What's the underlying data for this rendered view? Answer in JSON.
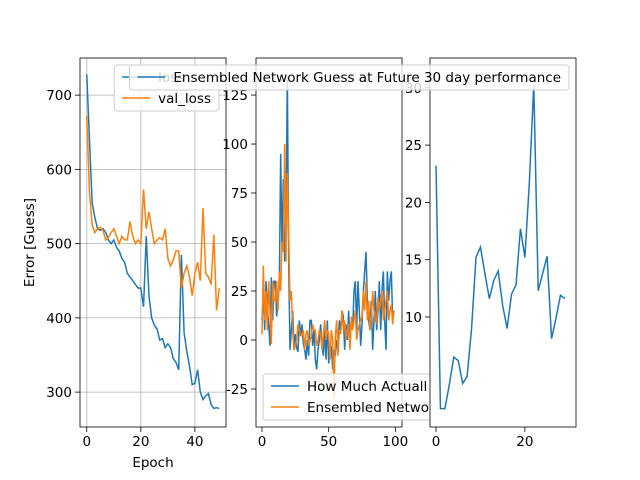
{
  "chart_data": [
    {
      "type": "line",
      "xlabel": "Epoch",
      "ylabel": "Error [Guess]",
      "grid": true,
      "legend": "upper right",
      "xlim": [
        -2.5,
        51.5
      ],
      "ylim": [
        253,
        750
      ],
      "xticks": [
        0,
        20,
        40
      ],
      "yticks": [
        300,
        400,
        500,
        600,
        700
      ],
      "x": [
        0,
        1,
        2,
        3,
        4,
        5,
        6,
        7,
        8,
        9,
        10,
        11,
        12,
        13,
        14,
        15,
        16,
        17,
        18,
        19,
        20,
        21,
        22,
        23,
        24,
        25,
        26,
        27,
        28,
        29,
        30,
        31,
        32,
        33,
        34,
        35,
        36,
        37,
        38,
        39,
        40,
        41,
        42,
        43,
        44,
        45,
        46,
        47,
        48,
        49
      ],
      "series": [
        {
          "name": "loss",
          "color": "#1f77b4",
          "values": [
            728,
            640,
            555,
            535,
            520,
            518,
            520,
            515,
            505,
            500,
            505,
            495,
            490,
            480,
            475,
            460,
            455,
            450,
            445,
            440,
            440,
            415,
            510,
            430,
            400,
            390,
            385,
            370,
            372,
            360,
            365,
            360,
            345,
            340,
            330,
            485,
            380,
            355,
            335,
            310,
            312,
            330,
            300,
            290,
            295,
            298,
            283,
            278,
            279,
            278
          ]
        },
        {
          "name": "val_loss",
          "color": "#ff7f0e",
          "values": [
            672,
            570,
            525,
            515,
            520,
            522,
            518,
            505,
            508,
            515,
            520,
            510,
            500,
            510,
            505,
            505,
            530,
            510,
            500,
            505,
            500,
            573,
            520,
            543,
            520,
            500,
            505,
            508,
            505,
            520,
            480,
            470,
            478,
            490,
            490,
            440,
            460,
            470,
            455,
            430,
            460,
            475,
            450,
            548,
            460,
            455,
            445,
            512,
            410,
            440
          ]
        }
      ]
    },
    {
      "type": "line",
      "grid": false,
      "legend": "lower left",
      "xlim": [
        -4.5,
        105
      ],
      "ylim": [
        -44.4,
        143.9
      ],
      "xticks": [
        0,
        50,
        100
      ],
      "yticks": [
        -25,
        0,
        25,
        50,
        75,
        100,
        125
      ],
      "x": [
        0,
        1,
        2,
        3,
        4,
        5,
        6,
        7,
        8,
        9,
        10,
        11,
        12,
        13,
        14,
        15,
        16,
        17,
        18,
        19,
        20,
        21,
        22,
        23,
        24,
        25,
        26,
        27,
        28,
        29,
        30,
        31,
        32,
        33,
        34,
        35,
        36,
        37,
        38,
        39,
        40,
        41,
        42,
        43,
        44,
        45,
        46,
        47,
        48,
        49,
        50,
        51,
        52,
        53,
        54,
        55,
        56,
        57,
        58,
        59,
        60,
        61,
        62,
        63,
        64,
        65,
        66,
        67,
        68,
        69,
        70,
        71,
        72,
        73,
        74,
        75,
        76,
        77,
        78,
        79,
        80,
        81,
        82,
        83,
        84,
        85,
        86,
        87,
        88,
        89,
        90,
        91,
        92,
        93,
        94,
        95,
        96,
        97,
        98,
        99
      ],
      "series": [
        {
          "name": "How Much Actuall",
          "color": "#1f77b4",
          "values": [
            10,
            25,
            5,
            30,
            18,
            8,
            -3,
            32,
            10,
            30,
            30,
            12,
            20,
            28,
            95,
            45,
            82,
            40,
            60,
            135,
            40,
            -5,
            5,
            15,
            -5,
            3,
            -4,
            -6,
            10,
            2,
            8,
            -2,
            -5,
            -10,
            0,
            -8,
            10,
            10,
            -3,
            5,
            -10,
            -15,
            -5,
            0,
            8,
            -3,
            -8,
            5,
            -10,
            10,
            -12,
            -5,
            -3,
            -15,
            -5,
            -8,
            0,
            -5,
            10,
            5,
            15,
            12,
            -5,
            8,
            0,
            15,
            -3,
            10,
            5,
            25,
            30,
            5,
            30,
            15,
            -3,
            8,
            25,
            35,
            45,
            20,
            10,
            5,
            20,
            -5,
            10,
            25,
            5,
            15,
            30,
            5,
            25,
            35,
            10,
            -5,
            35,
            20,
            30,
            35,
            10,
            15
          ]
        },
        {
          "name": "Ensembled Netwo",
          "color": "#ff7f0e",
          "values": [
            3,
            38,
            10,
            25,
            5,
            30,
            15,
            -2,
            30,
            20,
            20,
            30,
            15,
            35,
            25,
            50,
            45,
            100,
            40,
            85,
            55,
            20,
            25,
            5,
            -5,
            -3,
            0,
            8,
            5,
            3,
            2,
            5,
            -5,
            3,
            5,
            -3,
            0,
            2,
            8,
            5,
            5,
            -3,
            0,
            5,
            3,
            -5,
            2,
            10,
            0,
            5,
            3,
            -10,
            5,
            0,
            -30,
            2,
            10,
            -8,
            5,
            3,
            15,
            5,
            10,
            0,
            5,
            8,
            -5,
            12,
            5,
            10,
            15,
            0,
            5,
            8,
            10,
            12,
            25,
            15,
            30,
            10,
            20,
            5,
            12,
            25,
            15,
            10,
            8,
            22,
            15,
            20,
            25,
            10,
            15,
            20,
            25,
            10,
            15,
            18,
            8,
            15
          ]
        }
      ]
    },
    {
      "type": "line",
      "grid": false,
      "legend": "upper right",
      "xlim": [
        -1.35,
        31.5
      ],
      "ylim": [
        0.4,
        32.6
      ],
      "xticks": [
        0,
        20
      ],
      "yticks": [
        10,
        15,
        20,
        25,
        30
      ],
      "x": [
        0,
        1,
        2,
        3,
        4,
        5,
        6,
        7,
        8,
        9,
        10,
        11,
        12,
        13,
        14,
        15,
        16,
        17,
        18,
        19,
        20,
        21,
        22,
        23,
        24,
        25,
        26,
        27,
        28,
        29
      ],
      "series": [
        {
          "name": "Ensembled Network Guess at Future 30 day performance",
          "color": "#1f77b4",
          "values": [
            23.2,
            2.0,
            2.0,
            4.1,
            6.5,
            6.2,
            4.2,
            4.8,
            9.0,
            15.2,
            16.1,
            13.8,
            11.6,
            13.2,
            14,
            11,
            9,
            12,
            12.8,
            17.7,
            15.2,
            21.7,
            30.3,
            12.3,
            13.8,
            15.3,
            8.1,
            9.9,
            11.9,
            11.6
          ]
        }
      ]
    }
  ]
}
